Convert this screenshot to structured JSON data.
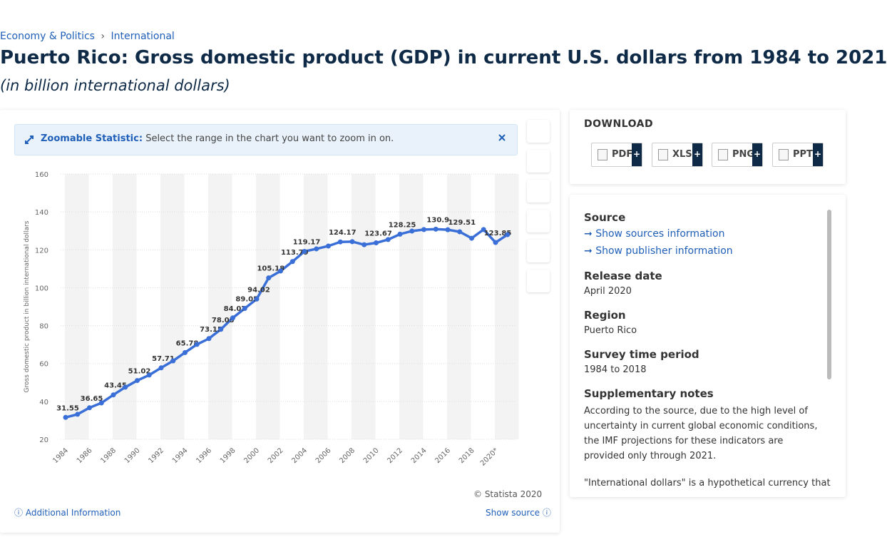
{
  "breadcrumb": [
    "Economy & Politics",
    "International"
  ],
  "breadcrumb_sep": "›",
  "title": "Puerto Rico: Gross domestic product (GDP) in current U.S. dollars from 1984 to 2021",
  "subtitle": "(in billion international dollars)",
  "zoom": {
    "label": "Zoomable Statistic:",
    "text": "Select the range in the chart you want to zoom in on."
  },
  "chart_data": {
    "type": "line",
    "y_label": "Gross domestic product in billion international dollars",
    "categories": [
      "1984",
      null,
      "1986",
      null,
      "1988",
      null,
      "1990",
      null,
      "1992",
      null,
      "1994",
      null,
      "1996",
      null,
      "1998",
      null,
      "2000",
      null,
      "2002",
      null,
      "2004",
      null,
      "2006",
      null,
      "2008",
      null,
      "2010",
      null,
      "2012",
      null,
      "2014",
      null,
      "2016",
      null,
      "2018",
      null,
      "2020*",
      null
    ],
    "values": [
      31.55,
      33.2,
      36.65,
      39.2,
      43.45,
      47.5,
      51.02,
      53.9,
      57.71,
      61.4,
      65.78,
      70.1,
      73.15,
      78.05,
      84.07,
      89.05,
      94.02,
      105.18,
      108.8,
      113.79,
      119.17,
      120.5,
      122.0,
      124.17,
      124.3,
      122.7,
      123.67,
      125.4,
      128.25,
      129.9,
      130.7,
      130.9,
      130.6,
      129.51,
      126.1,
      130.7,
      123.85,
      128.0
    ],
    "value_labels": [
      "31.55",
      null,
      "36.65",
      null,
      "43.45",
      null,
      "51.02",
      null,
      "57.71",
      null,
      "65.78",
      null,
      "73.15",
      "78.05",
      "84.07",
      "89.05",
      "94.02",
      "105.18",
      null,
      "113.79",
      "119.17",
      null,
      null,
      "124.17",
      null,
      null,
      "123.67",
      null,
      "128.25",
      null,
      null,
      "130.9",
      null,
      "129.51",
      null,
      null,
      "123.85",
      null
    ],
    "color": "#3a6fd8",
    "ylim": [
      20,
      160
    ],
    "yticks": [
      20,
      40,
      60,
      80,
      100,
      120,
      140,
      160
    ],
    "grid": true
  },
  "credit": "© Statista 2020",
  "additional": "Additional Information",
  "show_source": "Show source",
  "download": {
    "heading": "DOWNLOAD",
    "formats": [
      "PDF",
      "XLS",
      "PNG",
      "PPT"
    ],
    "plus": "+"
  },
  "info": {
    "source": {
      "label": "Source",
      "links": [
        "Show sources information",
        "Show publisher information"
      ]
    },
    "release_date": {
      "label": "Release date",
      "value": "April 2020"
    },
    "region": {
      "label": "Region",
      "value": "Puerto Rico"
    },
    "period": {
      "label": "Survey time period",
      "value": "1984 to 2018"
    },
    "notes": {
      "label": "Supplementary notes",
      "text": "According to the source, due to the high level of uncertainty in current global economic conditions, the IMF projections for these indicators are provided only through 2021.",
      "more": "\"International dollars\" is a hypothetical currency that"
    }
  }
}
